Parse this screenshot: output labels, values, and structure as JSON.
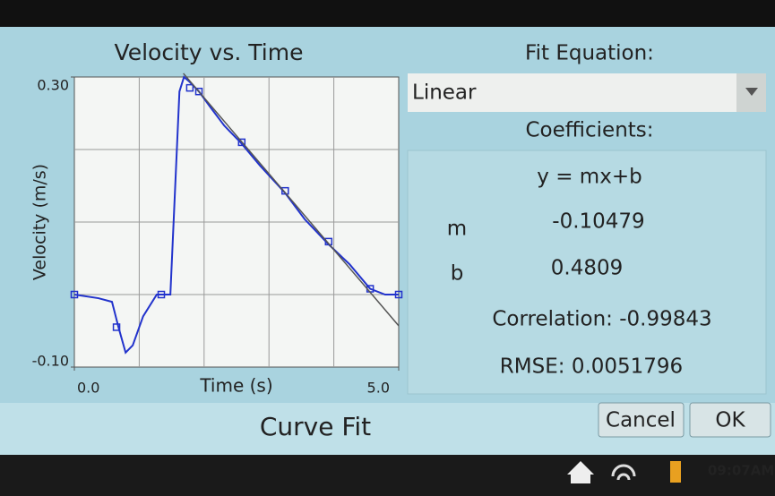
{
  "chart_data": {
    "type": "line",
    "title": "Velocity vs. Time",
    "x_label": "Time (s)",
    "y_label": "Velocity (m/s)",
    "xlim": [
      0,
      5
    ],
    "ylim": [
      -0.1,
      0.3
    ],
    "xticks": [
      {
        "value": 0,
        "label": "0.0"
      },
      {
        "value": 5,
        "label": "5.0"
      }
    ],
    "yticks": [
      {
        "value": 0.3,
        "label": "0.30"
      },
      {
        "value": -0.1,
        "label": "-0.10"
      }
    ],
    "grid": true,
    "xgrid_lines": [
      1,
      2,
      3,
      4
    ],
    "ygrid_lines": [
      0,
      0.1,
      0.2
    ],
    "series": [
      {
        "color": "#2233cc",
        "marker": "none",
        "x": [
          0,
          0.37,
          0.58,
          0.68,
          0.79,
          0.9,
          1.06,
          1.27,
          1.48,
          1.56,
          1.62,
          1.69,
          1.78,
          1.92,
          2.1,
          2.31,
          2.56,
          2.86,
          3.25,
          3.55,
          3.91,
          4.24,
          4.56,
          4.79,
          5.0
        ],
        "values": [
          0,
          -0.005,
          -0.01,
          -0.045,
          -0.08,
          -0.07,
          -0.03,
          0,
          0,
          0.16,
          0.28,
          0.3,
          0.293,
          0.28,
          0.258,
          0.233,
          0.21,
          0.178,
          0.14,
          0.104,
          0.07,
          0.042,
          0.008,
          0,
          0
        ]
      },
      {
        "color": "#2233cc",
        "marker": "square",
        "x": [
          0,
          0.65,
          1.34,
          1.78,
          1.92,
          2.58,
          3.25,
          3.92,
          4.56,
          5.0
        ],
        "values": [
          0,
          -0.045,
          0,
          0.285,
          0.28,
          0.21,
          0.143,
          0.073,
          0.008,
          0
        ]
      },
      {
        "color": "#555555",
        "marker": "none",
        "x": [
          1.68,
          5
        ],
        "values": [
          0.305,
          -0.043
        ]
      }
    ]
  },
  "panel": {
    "fit_label": "Fit Equation:",
    "fit_choice": "Linear",
    "coefficients_label": "Coefficients:",
    "equation": "y = mx+b",
    "m_label": "m",
    "m_value": "-0.10479",
    "b_label": "b",
    "b_value": "0.4809",
    "correlation": "Correlation: -0.99843",
    "rmse": "RMSE: 0.0051796"
  },
  "footer": {
    "title": "Curve Fit",
    "cancel": "Cancel",
    "ok": "OK",
    "time": "09:07AM"
  }
}
